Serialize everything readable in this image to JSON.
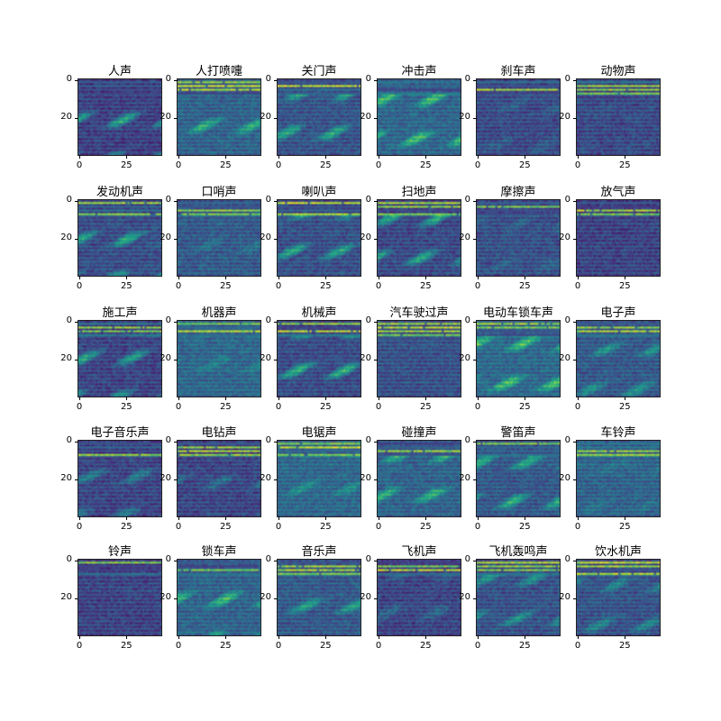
{
  "chart_data": {
    "type": "heatmap",
    "layout": "5 rows x 6 columns grid of spectrogram-like feature maps",
    "shape": [
      40,
      44
    ],
    "colormap": "viridis",
    "x_ticks": [
      "0",
      "25"
    ],
    "y_ticks": [
      "0",
      "20"
    ],
    "panels": [
      {
        "title": "人声"
      },
      {
        "title": "人打喷嚏"
      },
      {
        "title": "关门声"
      },
      {
        "title": "冲击声"
      },
      {
        "title": "刹车声"
      },
      {
        "title": "动物声"
      },
      {
        "title": "发动机声"
      },
      {
        "title": "口哨声"
      },
      {
        "title": "喇叭声"
      },
      {
        "title": "扫地声"
      },
      {
        "title": "摩擦声"
      },
      {
        "title": "放气声"
      },
      {
        "title": "施工声"
      },
      {
        "title": "机器声"
      },
      {
        "title": "机械声"
      },
      {
        "title": "汽车驶过声"
      },
      {
        "title": "电动车锁车声"
      },
      {
        "title": "电子声"
      },
      {
        "title": "电子音乐声"
      },
      {
        "title": "电钻声"
      },
      {
        "title": "电锯声"
      },
      {
        "title": "碰撞声"
      },
      {
        "title": "警笛声"
      },
      {
        "title": "车铃声"
      },
      {
        "title": "铃声"
      },
      {
        "title": "锁车声"
      },
      {
        "title": "音乐声"
      },
      {
        "title": "飞机声"
      },
      {
        "title": "飞机轰鸣声"
      },
      {
        "title": "饮水机声"
      }
    ]
  }
}
